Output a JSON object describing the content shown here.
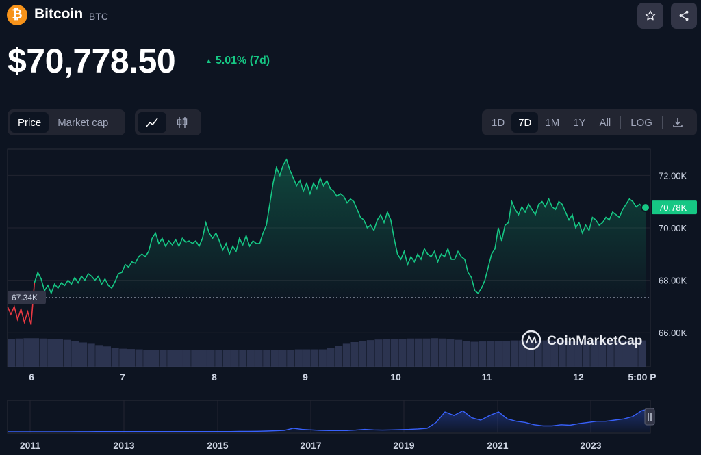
{
  "coin": {
    "name": "Bitcoin",
    "symbol": "BTC",
    "icon": "bitcoin-icon"
  },
  "header": {
    "star_icon": "star-icon",
    "share_icon": "share-icon"
  },
  "price": {
    "value": "$70,778.50",
    "change": "5.01% (7d)",
    "direction": "up"
  },
  "toolbar_left": {
    "metric_tabs": [
      {
        "label": "Price",
        "active": true
      },
      {
        "label": "Market cap",
        "active": false
      }
    ],
    "chart_types": [
      {
        "icon": "line-chart-icon",
        "active": true
      },
      {
        "icon": "candlestick-icon",
        "active": false
      }
    ]
  },
  "toolbar_right": {
    "ranges": [
      {
        "label": "1D",
        "active": false
      },
      {
        "label": "7D",
        "active": true
      },
      {
        "label": "1M",
        "active": false
      },
      {
        "label": "1Y",
        "active": false
      },
      {
        "label": "All",
        "active": false
      }
    ],
    "log_label": "LOG",
    "download_icon": "download-icon"
  },
  "colors": {
    "up": "#16c784",
    "down": "#ea3943",
    "background": "#0d1421",
    "panel": "#222531",
    "brush_line": "#3861fb"
  },
  "chart_data": [
    {
      "type": "area",
      "title": "",
      "xlabel": "",
      "ylabel": "",
      "x_ticks": [
        "6",
        "7",
        "8",
        "9",
        "10",
        "11",
        "12",
        "5:00 P"
      ],
      "y_ticks": [
        "72.00K",
        "70.00K",
        "68.00K",
        "66.00K"
      ],
      "ylim": [
        64700,
        73000
      ],
      "current_price_label": "70.78K",
      "reference_price": 67340,
      "reference_label": "67.34K",
      "watermark": "CoinMarketCap",
      "series": [
        {
          "values": [
            67000,
            66700,
            67000,
            66500,
            66900,
            66400,
            66800,
            66300,
            67900,
            68300,
            68050,
            67600,
            67800,
            67500,
            67850,
            67700,
            67900,
            67800,
            68000,
            67850,
            68100,
            67900,
            68150,
            68000,
            68250,
            68150,
            68000,
            68150,
            67850,
            68050,
            67800,
            67700,
            67950,
            68250,
            68300,
            68600,
            68500,
            68700,
            68650,
            68900,
            69000,
            68900,
            69100,
            69600,
            69800,
            69400,
            69600,
            69300,
            69500,
            69350,
            69550,
            69300,
            69600,
            69450,
            69500,
            69400,
            69500,
            69300,
            69600,
            70200,
            69800,
            69600,
            69800,
            69500,
            69150,
            69400,
            69000,
            69300,
            69100,
            69600,
            69350,
            69700,
            69300,
            69500,
            69400,
            69400,
            69800,
            70100,
            70900,
            71700,
            72300,
            72000,
            72400,
            72600,
            72200,
            71900,
            71600,
            71800,
            71400,
            71700,
            71300,
            71700,
            71500,
            71900,
            71600,
            71800,
            71500,
            71400,
            71200,
            71300,
            71200,
            70950,
            71100,
            71000,
            70700,
            70400,
            70300,
            70000,
            70100,
            69900,
            70300,
            70500,
            70200,
            70600,
            70300,
            69600,
            69000,
            68800,
            69100,
            68600,
            68900,
            68700,
            69000,
            68800,
            69200,
            69000,
            68900,
            69100,
            68700,
            69000,
            68900,
            69200,
            68800,
            68800,
            69100,
            68900,
            68800,
            68300,
            68100,
            67600,
            67500,
            67700,
            68000,
            68500,
            69000,
            69200,
            70000,
            69500,
            70100,
            70200,
            71000,
            70700,
            70500,
            70800,
            70600,
            70900,
            70700,
            70500,
            70900,
            71000,
            70800,
            71100,
            70800,
            70700,
            71000,
            70900,
            70600,
            70300,
            70500,
            70000,
            70200,
            69800,
            70100,
            69900,
            70400,
            70300,
            70100,
            70200,
            70400,
            70300,
            70600,
            70500,
            70400,
            70700,
            70900,
            71100,
            71000,
            70800,
            70900,
            70800,
            70778
          ]
        }
      ],
      "volume": [
        0.85,
        0.86,
        0.87,
        0.87,
        0.86,
        0.85,
        0.84,
        0.82,
        0.78,
        0.74,
        0.7,
        0.66,
        0.62,
        0.58,
        0.55,
        0.54,
        0.53,
        0.52,
        0.52,
        0.51,
        0.51,
        0.5,
        0.5,
        0.5,
        0.5,
        0.5,
        0.5,
        0.5,
        0.5,
        0.5,
        0.5,
        0.51,
        0.51,
        0.52,
        0.52,
        0.52,
        0.53,
        0.53,
        0.53,
        0.53,
        0.58,
        0.64,
        0.7,
        0.75,
        0.79,
        0.81,
        0.83,
        0.84,
        0.85,
        0.85,
        0.86,
        0.86,
        0.86,
        0.87,
        0.86,
        0.85,
        0.82,
        0.78,
        0.76,
        0.77,
        0.78,
        0.79,
        0.79,
        0.8,
        0.8,
        0.8,
        0.8,
        0.8,
        0.8,
        0.8,
        0.79,
        0.79,
        0.8,
        0.8,
        0.8,
        0.79,
        0.79,
        0.8,
        0.8,
        0.8
      ]
    },
    {
      "type": "area",
      "x_ticks": [
        "2011",
        "2013",
        "2015",
        "2017",
        "2019",
        "2021",
        "2023"
      ],
      "values": [
        0,
        0,
        0,
        0,
        0,
        0,
        0,
        0,
        0.005,
        0.005,
        0.01,
        0.01,
        0.01,
        0.01,
        0.01,
        0.01,
        0.01,
        0.01,
        0.01,
        0.01,
        0.01,
        0.01,
        0.01,
        0.01,
        0.01,
        0.01,
        0.015,
        0.015,
        0.02,
        0.03,
        0.04,
        0.06,
        0.15,
        0.1,
        0.08,
        0.06,
        0.05,
        0.05,
        0.05,
        0.07,
        0.1,
        0.08,
        0.07,
        0.08,
        0.09,
        0.1,
        0.12,
        0.15,
        0.4,
        0.85,
        0.7,
        0.9,
        0.6,
        0.5,
        0.7,
        0.85,
        0.55,
        0.45,
        0.4,
        0.3,
        0.25,
        0.25,
        0.3,
        0.28,
        0.35,
        0.4,
        0.45,
        0.45,
        0.5,
        0.55,
        0.65,
        0.9,
        1.0
      ]
    }
  ]
}
